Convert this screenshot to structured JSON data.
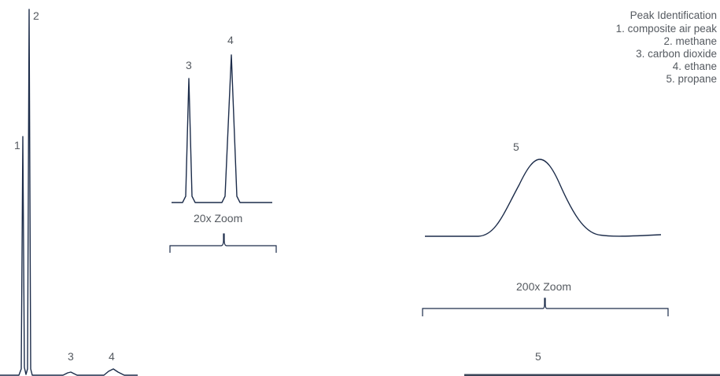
{
  "chart_data": {
    "type": "line",
    "title": "",
    "xlabel": "",
    "ylabel": "",
    "legend": {
      "title": "Peak Identification",
      "placement": "top-right",
      "entries": [
        "1. composite air peak",
        "2. methane",
        "3. carbon dioxide",
        "4. ethane",
        "5. propane"
      ]
    },
    "main_trace": {
      "peaks": [
        {
          "label": "1",
          "rel_height": 0.65
        },
        {
          "label": "2",
          "rel_height": 1.0
        },
        {
          "label": "3",
          "rel_height": 0.01
        },
        {
          "label": "4",
          "rel_height": 0.02
        },
        {
          "label": "5",
          "rel_height": 0.0
        }
      ]
    },
    "insets": [
      {
        "zoom_label": "20x Zoom",
        "peaks": [
          {
            "label": "3",
            "rel_height": 0.6
          },
          {
            "label": "4",
            "rel_height": 1.0
          }
        ]
      },
      {
        "zoom_label": "200x Zoom",
        "peaks": [
          {
            "label": "5",
            "rel_height": 1.0
          }
        ]
      }
    ]
  }
}
